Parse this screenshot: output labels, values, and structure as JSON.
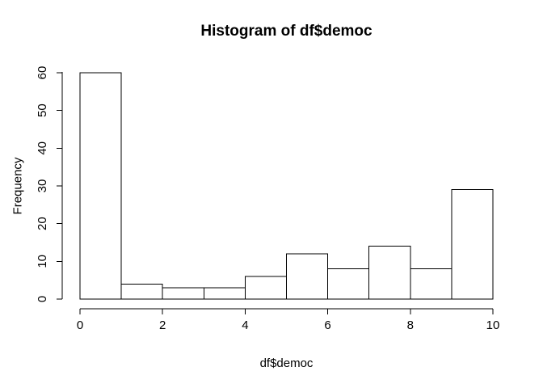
{
  "chart_data": {
    "type": "bar",
    "subtype": "histogram",
    "title": "Histogram of df$democ",
    "xlabel": "df$democ",
    "ylabel": "Frequency",
    "bin_edges": [
      0,
      1,
      2,
      3,
      4,
      5,
      6,
      7,
      8,
      9,
      10
    ],
    "values": [
      60,
      4,
      3,
      3,
      6,
      12,
      8,
      14,
      8,
      29
    ],
    "xticks": [
      "0",
      "2",
      "4",
      "6",
      "8",
      "10"
    ],
    "xtick_values": [
      0,
      2,
      4,
      6,
      8,
      10
    ],
    "yticks": [
      "0",
      "10",
      "20",
      "30",
      "40",
      "50",
      "60"
    ],
    "ytick_values": [
      0,
      10,
      20,
      30,
      40,
      50,
      60
    ],
    "xlim": [
      0,
      10
    ],
    "ylim": [
      0,
      60
    ],
    "legend": null,
    "grid": false,
    "colors": {
      "background": "#ffffff",
      "bar_fill": "#ffffff",
      "bar_stroke": "#000000",
      "axis": "#000000",
      "text": "#000000"
    }
  }
}
